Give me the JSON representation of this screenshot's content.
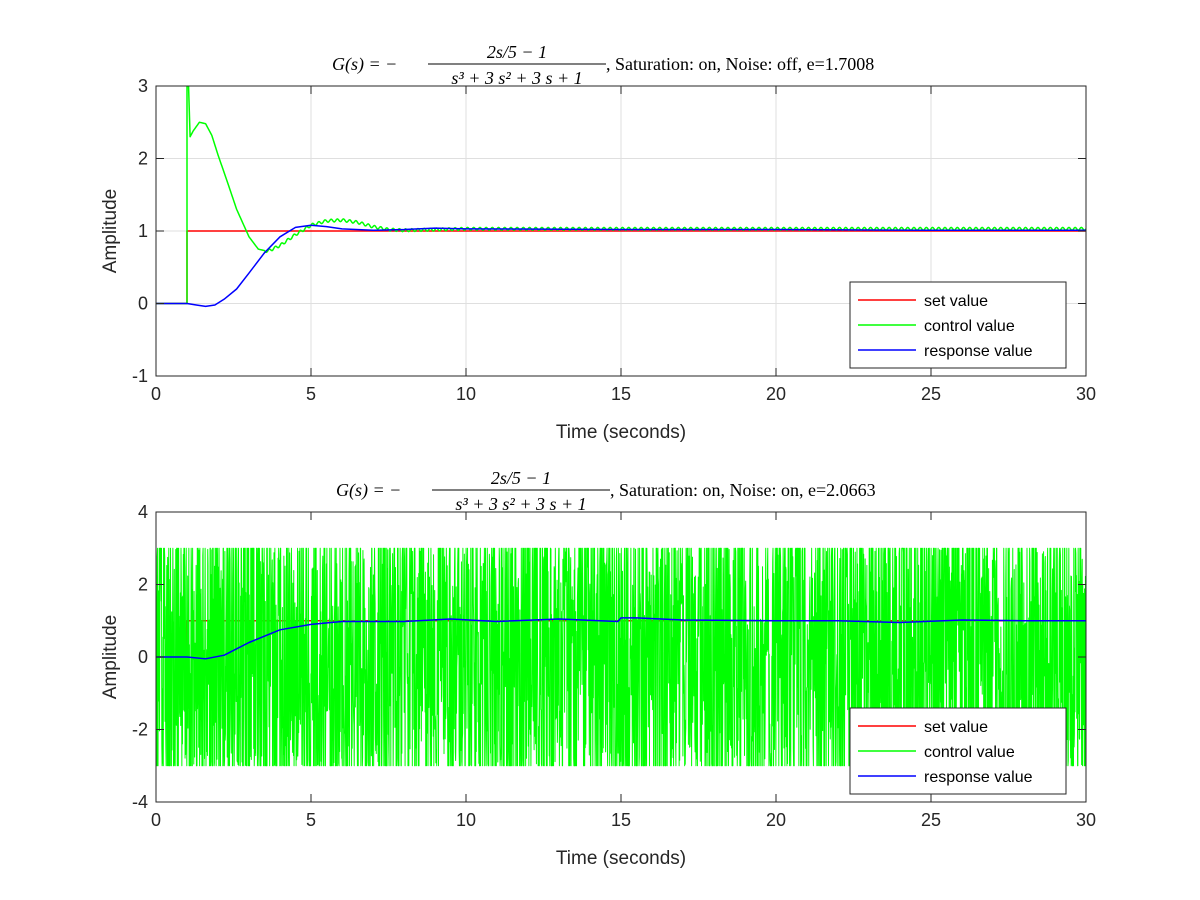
{
  "chart_data": [
    {
      "type": "line",
      "title": {
        "lhs": "G(s) = −",
        "num": "2s/5 − 1",
        "den": "s³ + 3 s² + 3 s + 1",
        "suffix": ", Saturation: on, Noise: off, e=1.7008"
      },
      "xlabel": "Time (seconds)",
      "ylabel": "Amplitude",
      "xlim": [
        0,
        30
      ],
      "ylim": [
        -1,
        3
      ],
      "xticks": [
        "0",
        "5",
        "10",
        "15",
        "20",
        "25",
        "30"
      ],
      "yticks": [
        "-1",
        "0",
        "1",
        "2",
        "3"
      ],
      "grid": true,
      "legend_position": "bottom-right",
      "series": [
        {
          "name": "set value",
          "color": "#ff0000",
          "x": [
            0,
            1,
            1,
            30
          ],
          "y": [
            0,
            0,
            1,
            1
          ]
        },
        {
          "name": "control value",
          "color": "#00ff00",
          "x": [
            0,
            1.0,
            1.0,
            1.05,
            1.1,
            1.2,
            1.4,
            1.6,
            1.8,
            2.0,
            2.3,
            2.6,
            3.0,
            3.3,
            3.6,
            4.0,
            4.5,
            5.0,
            5.5,
            6.0,
            6.5,
            7.0,
            7.5,
            8.0,
            9.0,
            10.0,
            12.0,
            15.0,
            20.0,
            25.0,
            30.0
          ],
          "y": [
            0,
            0,
            3.0,
            3.0,
            2.3,
            2.38,
            2.5,
            2.48,
            2.32,
            2.05,
            1.68,
            1.3,
            0.92,
            0.75,
            0.72,
            0.8,
            0.95,
            1.08,
            1.14,
            1.15,
            1.12,
            1.06,
            1.02,
            1.01,
            1.02,
            1.03,
            1.03,
            1.03,
            1.03,
            1.03,
            1.03
          ],
          "ripple": 0.02
        },
        {
          "name": "response value",
          "color": "#0000ff",
          "x": [
            0,
            1.0,
            1.3,
            1.6,
            1.9,
            2.2,
            2.6,
            3.0,
            3.5,
            4.0,
            4.5,
            5.0,
            5.5,
            6.0,
            7.0,
            8.0,
            9.0,
            10.0,
            15.0,
            20.0,
            25.0,
            30.0
          ],
          "y": [
            0,
            0,
            -0.02,
            -0.04,
            -0.02,
            0.06,
            0.2,
            0.42,
            0.7,
            0.92,
            1.05,
            1.08,
            1.06,
            1.03,
            1.01,
            1.02,
            1.04,
            1.03,
            1.02,
            1.02,
            1.01,
            1.01
          ]
        }
      ]
    },
    {
      "type": "line",
      "title": {
        "lhs": "G(s) = −",
        "num": "2s/5 − 1",
        "den": "s³ + 3 s² + 3 s + 1",
        "suffix": ", Saturation: on, Noise: on, e=2.0663"
      },
      "xlabel": "Time (seconds)",
      "ylabel": "Amplitude",
      "xlim": [
        0,
        30
      ],
      "ylim": [
        -4,
        4
      ],
      "xticks": [
        "0",
        "5",
        "10",
        "15",
        "20",
        "25",
        "30"
      ],
      "yticks": [
        "-4",
        "-2",
        "0",
        "2",
        "4"
      ],
      "grid": false,
      "legend_position": "bottom-right",
      "series": [
        {
          "name": "set value",
          "color": "#ff0000",
          "x": [
            0,
            1,
            1,
            30
          ],
          "y": [
            0,
            0,
            1,
            1
          ]
        },
        {
          "name": "control value",
          "color": "#00ff00",
          "noise_band": [
            -3,
            3
          ],
          "x": [
            0,
            30
          ],
          "y": [
            0,
            0
          ]
        },
        {
          "name": "response value",
          "color": "#0000ff",
          "x": [
            0,
            1.0,
            1.6,
            2.2,
            3.0,
            4.0,
            5.0,
            6.0,
            8.0,
            9.5,
            11.0,
            13.0,
            14.9,
            15.0,
            15.5,
            17.0,
            20.0,
            22.0,
            24.0,
            26.0,
            28.0,
            30.0
          ],
          "y": [
            0,
            0,
            -0.05,
            0.05,
            0.4,
            0.75,
            0.9,
            0.98,
            0.98,
            1.05,
            0.98,
            1.05,
            0.98,
            1.08,
            1.08,
            1.02,
            1.0,
            1.0,
            0.95,
            1.02,
            1.0,
            1.0
          ]
        }
      ]
    }
  ]
}
